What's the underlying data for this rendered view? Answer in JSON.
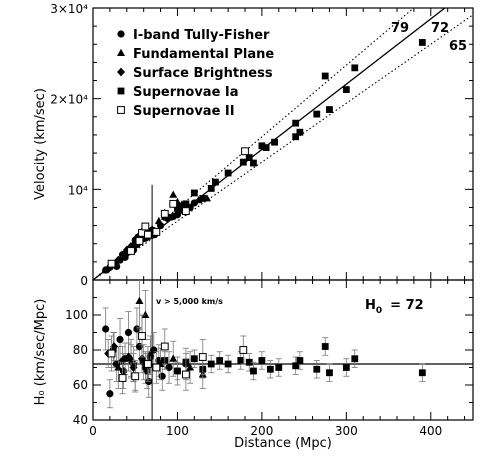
{
  "chart_data": [
    {
      "panel": "top",
      "type": "scatter",
      "ylabel": "Velocity (km/sec)",
      "xlim": [
        0,
        450
      ],
      "ylim": [
        0,
        30000
      ],
      "y_ticks": [
        {
          "value": 0,
          "label": "0"
        },
        {
          "value": 10000,
          "label": "10⁴"
        },
        {
          "value": 20000,
          "label": "2×10⁴"
        },
        {
          "value": 30000,
          "label": "3×10⁴"
        }
      ],
      "legend": {
        "placement": "top-left",
        "entries": [
          {
            "label": "I-band Tully-Fisher",
            "marker": "filled-circle"
          },
          {
            "label": "Fundamental Plane",
            "marker": "filled-triangle"
          },
          {
            "label": "Surface Brightness",
            "marker": "filled-diamond"
          },
          {
            "label": "Supernovae Ia",
            "marker": "filled-square"
          },
          {
            "label": "Supernovae II",
            "marker": "open-square"
          }
        ]
      },
      "lines": [
        {
          "label": "79",
          "slope": 79,
          "style": "dotted"
        },
        {
          "label": "72",
          "slope": 72,
          "style": "solid"
        },
        {
          "label": "65",
          "slope": 65,
          "style": "dotted"
        }
      ],
      "vline_x": 70,
      "series": [
        {
          "marker": "filled-circle",
          "points": [
            [
              15,
              1100
            ],
            [
              20,
              1400
            ],
            [
              25,
              1700
            ],
            [
              28,
              1500
            ],
            [
              32,
              2200
            ],
            [
              35,
              2800
            ],
            [
              38,
              2500
            ],
            [
              40,
              3000
            ],
            [
              42,
              3100
            ],
            [
              45,
              3600
            ],
            [
              48,
              3300
            ],
            [
              50,
              4400
            ],
            [
              52,
              3900
            ],
            [
              53,
              4700
            ],
            [
              55,
              4200
            ],
            [
              56,
              4900
            ],
            [
              58,
              4500
            ],
            [
              60,
              5200
            ],
            [
              62,
              4600
            ],
            [
              64,
              5300
            ],
            [
              66,
              4800
            ],
            [
              68,
              5200
            ],
            [
              70,
              5500
            ],
            [
              73,
              5000
            ],
            [
              75,
              5300
            ],
            [
              80,
              6000
            ],
            [
              88,
              6800
            ],
            [
              95,
              7000
            ],
            [
              100,
              7200
            ],
            [
              105,
              7700
            ],
            [
              110,
              7500
            ],
            [
              115,
              8000
            ],
            [
              120,
              8500
            ]
          ]
        },
        {
          "marker": "filled-triangle",
          "points": [
            [
              35,
              2500
            ],
            [
              50,
              4300
            ],
            [
              58,
              5400
            ],
            [
              65,
              5300
            ],
            [
              70,
              5600
            ],
            [
              78,
              6500
            ],
            [
              85,
              7400
            ],
            [
              90,
              6900
            ],
            [
              95,
              9400
            ],
            [
              100,
              8600
            ],
            [
              105,
              8300
            ],
            [
              125,
              8800
            ],
            [
              135,
              9000
            ]
          ]
        },
        {
          "marker": "filled-diamond",
          "points": [
            [
              18,
              1200
            ],
            [
              22,
              1600
            ],
            [
              30,
              2200
            ],
            [
              40,
              3300
            ],
            [
              45,
              3700
            ],
            [
              52,
              4500
            ],
            [
              60,
              4800
            ],
            [
              65,
              5000
            ]
          ]
        },
        {
          "marker": "filled-square",
          "points": [
            [
              85,
              7000
            ],
            [
              100,
              7900
            ],
            [
              110,
              8400
            ],
            [
              120,
              9600
            ],
            [
              130,
              9000
            ],
            [
              140,
              10100
            ],
            [
              145,
              10800
            ],
            [
              160,
              11800
            ],
            [
              178,
              13000
            ],
            [
              185,
              13500
            ],
            [
              190,
              12900
            ],
            [
              200,
              14800
            ],
            [
              205,
              14600
            ],
            [
              215,
              15200
            ],
            [
              240,
              17300
            ],
            [
              240,
              15800
            ],
            [
              245,
              16300
            ],
            [
              265,
              18300
            ],
            [
              275,
              22500
            ],
            [
              280,
              18800
            ],
            [
              300,
              21000
            ],
            [
              310,
              23400
            ],
            [
              390,
              26200
            ]
          ]
        },
        {
          "marker": "open-square",
          "points": [
            [
              22,
              1800
            ],
            [
              45,
              3200
            ],
            [
              55,
              4300
            ],
            [
              58,
              5200
            ],
            [
              62,
              5900
            ],
            [
              65,
              5000
            ],
            [
              75,
              5300
            ],
            [
              85,
              7300
            ],
            [
              95,
              8400
            ],
            [
              110,
              7600
            ],
            [
              180,
              14200
            ]
          ]
        }
      ]
    },
    {
      "panel": "bottom",
      "type": "scatter",
      "xlabel": "Distance (Mpc)",
      "ylabel": "H₀ (km/sec/Mpc)",
      "xlim": [
        0,
        450
      ],
      "ylim": [
        40,
        120
      ],
      "x_ticks": [
        {
          "value": 0,
          "label": "0"
        },
        {
          "value": 100,
          "label": "100"
        },
        {
          "value": 200,
          "label": "200"
        },
        {
          "value": 300,
          "label": "300"
        },
        {
          "value": 400,
          "label": "400"
        }
      ],
      "y_ticks": [
        {
          "value": 40,
          "label": "40"
        },
        {
          "value": 60,
          "label": "60"
        },
        {
          "value": 80,
          "label": "80"
        },
        {
          "value": 100,
          "label": "100"
        }
      ],
      "hline_y": 72,
      "vline_x": 70,
      "annotation": "v > 5,000 km/s",
      "h0_label": "H",
      "h0_subscript": "0",
      "h0_value": "= 72",
      "series": [
        {
          "marker": "filled-circle",
          "points": [
            [
              15,
              92,
              12
            ],
            [
              20,
              55,
              8
            ],
            [
              24,
              80,
              10
            ],
            [
              28,
              72,
              10
            ],
            [
              32,
              86,
              12
            ],
            [
              36,
              68,
              10
            ],
            [
              38,
              75,
              9
            ],
            [
              42,
              90,
              12
            ],
            [
              45,
              74,
              9
            ],
            [
              48,
              72,
              10
            ],
            [
              50,
              65,
              8
            ],
            [
              52,
              92,
              12
            ],
            [
              55,
              82,
              10
            ],
            [
              58,
              88,
              12
            ],
            [
              60,
              73,
              10
            ],
            [
              62,
              70,
              9
            ],
            [
              64,
              68,
              10
            ],
            [
              66,
              62,
              9
            ],
            [
              68,
              76,
              10
            ],
            [
              72,
              80,
              10
            ],
            [
              78,
              74,
              9
            ],
            [
              82,
              65,
              8
            ],
            [
              90,
              70,
              9
            ],
            [
              100,
              68,
              8
            ],
            [
              110,
              72,
              9
            ]
          ]
        },
        {
          "marker": "filled-triangle",
          "points": [
            [
              30,
              70,
              12
            ],
            [
              45,
              75,
              11
            ],
            [
              55,
              108,
              15
            ],
            [
              62,
              100,
              14
            ],
            [
              68,
              78,
              10
            ],
            [
              80,
              72,
              9
            ],
            [
              95,
              75,
              10
            ],
            [
              115,
              70,
              9
            ],
            [
              130,
              66,
              8
            ]
          ]
        },
        {
          "marker": "filled-diamond",
          "points": [
            [
              18,
              78,
              8
            ],
            [
              25,
              82,
              8
            ],
            [
              35,
              74,
              8
            ],
            [
              42,
              76,
              8
            ],
            [
              48,
              70,
              8
            ],
            [
              58,
              75,
              8
            ],
            [
              65,
              71,
              8
            ]
          ]
        },
        {
          "marker": "filled-square",
          "points": [
            [
              85,
              74,
              5
            ],
            [
              100,
              68,
              5
            ],
            [
              110,
              73,
              5
            ],
            [
              120,
              75,
              5
            ],
            [
              130,
              69,
              5
            ],
            [
              140,
              72,
              5
            ],
            [
              150,
              74,
              5
            ],
            [
              160,
              72,
              5
            ],
            [
              175,
              74,
              5
            ],
            [
              185,
              73,
              5
            ],
            [
              190,
              68,
              5
            ],
            [
              200,
              74,
              5
            ],
            [
              210,
              69,
              5
            ],
            [
              220,
              70,
              5
            ],
            [
              240,
              71,
              5
            ],
            [
              245,
              74,
              5
            ],
            [
              265,
              69,
              5
            ],
            [
              275,
              82,
              5
            ],
            [
              280,
              67,
              5
            ],
            [
              300,
              70,
              5
            ],
            [
              310,
              75,
              5
            ],
            [
              390,
              67,
              5
            ]
          ]
        },
        {
          "marker": "open-square",
          "points": [
            [
              22,
              78,
              10
            ],
            [
              35,
              64,
              9
            ],
            [
              50,
              65,
              9
            ],
            [
              58,
              88,
              12
            ],
            [
              65,
              72,
              10
            ],
            [
              75,
              70,
              9
            ],
            [
              85,
              82,
              10
            ],
            [
              110,
              66,
              9
            ],
            [
              130,
              76,
              10
            ],
            [
              178,
              80,
              8
            ]
          ]
        }
      ]
    }
  ]
}
